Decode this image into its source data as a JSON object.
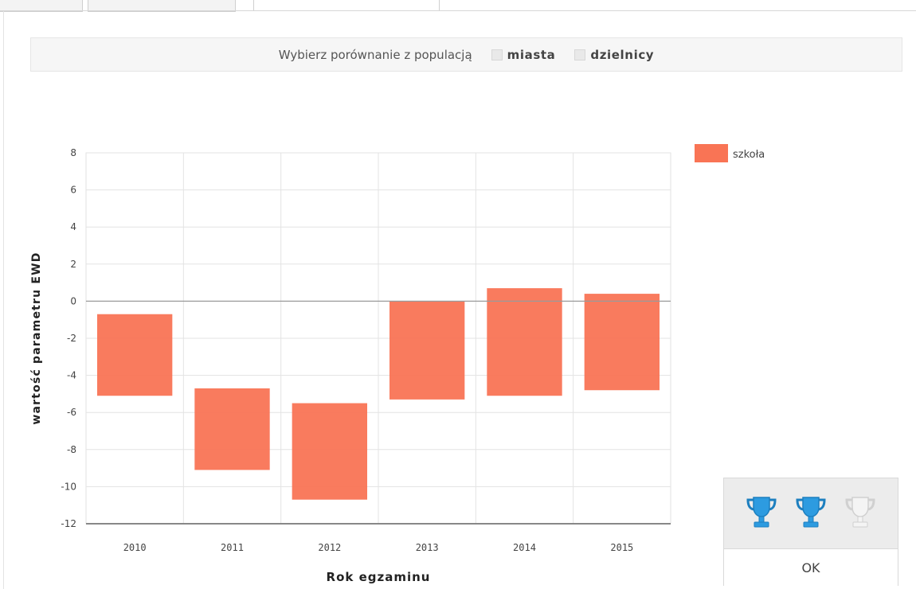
{
  "compare": {
    "prompt": "Wybierz porównanie z populacją",
    "option_city": "miasta",
    "option_district": "dzielnicy"
  },
  "awards": {
    "trophies": [
      {
        "icon": "trophy-icon",
        "state": "earned",
        "color": "#2d9be0"
      },
      {
        "icon": "trophy-icon",
        "state": "earned",
        "color": "#2d9be0"
      },
      {
        "icon": "trophy-icon",
        "state": "not-earned",
        "color": "#f4f4f4"
      }
    ],
    "ok_label": "OK"
  },
  "chart_data": {
    "type": "bar",
    "subtype": "floating-range",
    "categories": [
      "2010",
      "2011",
      "2012",
      "2013",
      "2014",
      "2015"
    ],
    "series": [
      {
        "name": "szkoła",
        "color": "#f97455",
        "low": [
          -5.1,
          -9.1,
          -10.7,
          -5.3,
          -5.1,
          -4.8
        ],
        "high": [
          -0.7,
          -4.7,
          -5.5,
          0.0,
          0.7,
          0.4
        ]
      }
    ],
    "xlabel": "Rok egzaminu",
    "ylabel": "wartość parametru EWD",
    "ylim": [
      -12,
      8
    ],
    "yticks": [
      -12,
      -10,
      -8,
      -6,
      -4,
      -2,
      0,
      2,
      4,
      6,
      8
    ],
    "grid": true,
    "legend_position": "top-right"
  }
}
